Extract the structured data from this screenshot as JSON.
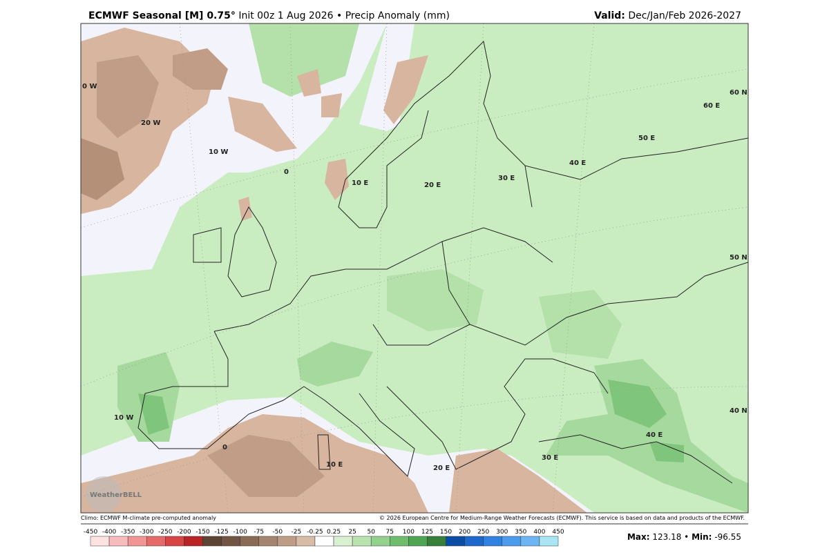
{
  "header": {
    "title_bold": "ECMWF Seasonal [M] 0.75°",
    "title_rest": "Init 00z 1 Aug 2026 • Precip Anomaly (mm)",
    "valid_label": "Valid:",
    "valid_period": "Dec/Jan/Feb 2026-2027"
  },
  "map": {
    "graticule_labels": [
      "0 W",
      "20 W",
      "10 W",
      "0",
      "10 E",
      "20 E",
      "30 E",
      "40 E",
      "50 E",
      "60 E",
      "60 N",
      "50 N",
      "40 N",
      "10 W",
      "0",
      "10 E",
      "20 E",
      "30 E",
      "40 E"
    ],
    "watermark": "WeatherBELL"
  },
  "footer": {
    "climo": "Climo: ECMWF M-climate pre-computed anomaly",
    "copyright": "© 2026 European Centre for Medium-Range Weather Forecasts (ECMWF). This service is based on data and products of the ECMWF."
  },
  "colorbar": {
    "labels": [
      -450,
      -400,
      -350,
      -300,
      -250,
      -200,
      -150,
      -125,
      -100,
      -75,
      -50,
      -25,
      -0.25,
      0.25,
      25,
      50,
      75,
      100,
      125,
      150,
      200,
      250,
      300,
      350,
      400,
      450
    ],
    "colors": [
      "#fde2e2",
      "#f8bcbc",
      "#f19494",
      "#e66a6a",
      "#d84444",
      "#b82424",
      "#5e4434",
      "#725544",
      "#8a6b56",
      "#a4846e",
      "#bd9d86",
      "#d6bba5",
      "#ffffff",
      "#d9f1d1",
      "#b9e4b0",
      "#94d18c",
      "#70bd6e",
      "#50a553",
      "#37803c",
      "#0c4ea6",
      "#1c68cc",
      "#2f82e2",
      "#4c9bec",
      "#6db4f2",
      "#a8e6f6"
    ]
  },
  "stats": {
    "max_label": "Max:",
    "max": 123.18,
    "separator": "•",
    "min_label": "Min:",
    "min": -96.55
  }
}
